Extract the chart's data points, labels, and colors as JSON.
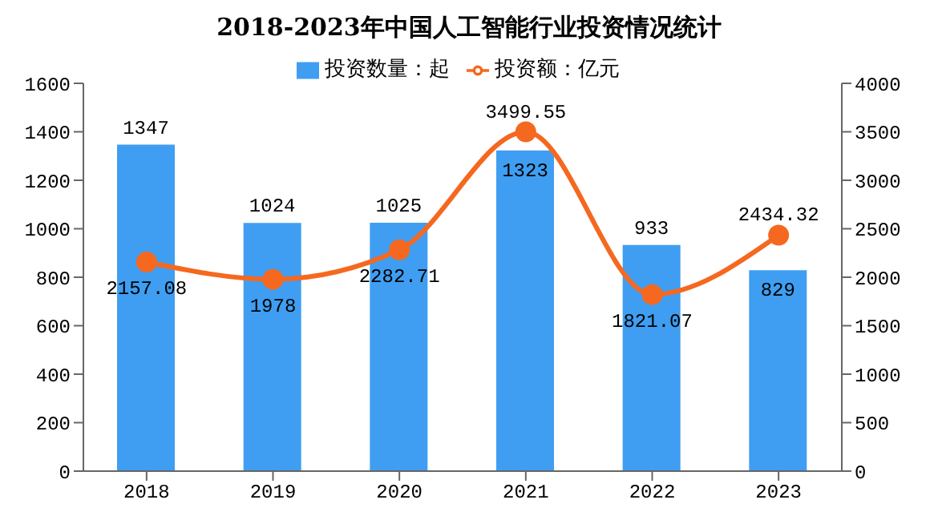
{
  "chart_data": {
    "type": "bar",
    "title": "2018-2023年中国人工智能行业投资情况统计",
    "categories": [
      "2018",
      "2019",
      "2020",
      "2021",
      "2022",
      "2023"
    ],
    "series": [
      {
        "name": "投资数量：起",
        "color": "#3f9ef2",
        "values": [
          1347,
          1024,
          1025,
          1323,
          933,
          829
        ]
      },
      {
        "name": "投资额：亿元",
        "type": "line",
        "axis": "y2",
        "color": "#f5681f",
        "values": [
          2157.08,
          1978,
          2282.71,
          3499.55,
          1821.07,
          2434.32
        ]
      }
    ],
    "ylim": [
      0,
      1600
    ],
    "yticks": [
      0,
      200,
      400,
      600,
      800,
      1000,
      1200,
      1400,
      1600
    ],
    "y2lim": [
      0,
      4000
    ],
    "y2ticks": [
      0,
      500,
      1000,
      1500,
      2000,
      2500,
      3000,
      3500,
      4000
    ],
    "grid": false,
    "legend": "top",
    "marker": "circle",
    "line_style": "solid",
    "data_labels": true
  }
}
